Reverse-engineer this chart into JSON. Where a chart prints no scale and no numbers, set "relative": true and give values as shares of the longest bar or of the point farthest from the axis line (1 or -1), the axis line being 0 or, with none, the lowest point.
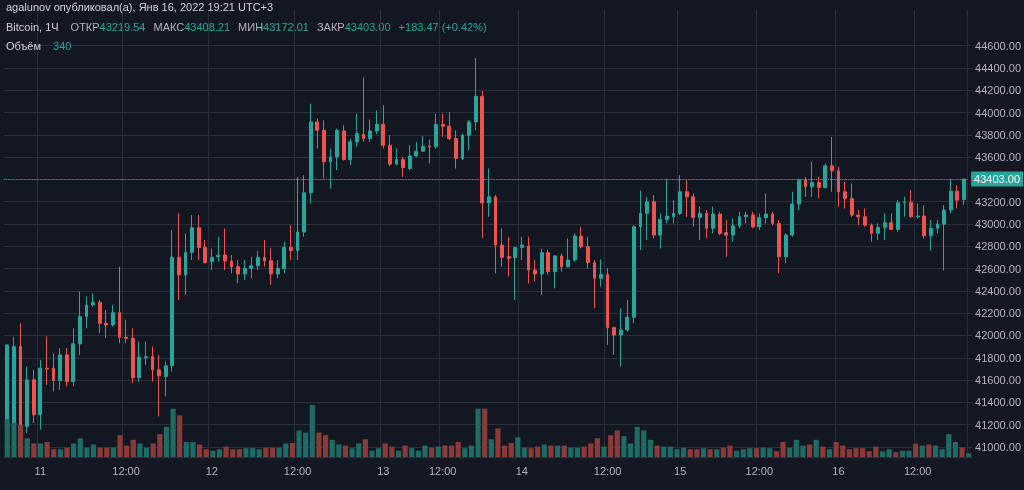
{
  "chart_data": [
    {
      "type": "candlestick",
      "title": "Bitcoin, 1Ч",
      "annotations": [
        "agalunov опубликовал(а), Янв 16, 2022 19:21 UTC+3",
        "ОТКР43219.54",
        "МАКС43408.21",
        "МИН43172.01",
        "ЗАКР43403.00",
        "+183.47 (+0.42%)"
      ],
      "categories": [
        null,
        null,
        null,
        null,
        null,
        "11",
        null,
        null,
        null,
        null,
        null,
        null,
        null,
        null,
        null,
        null,
        null,
        null,
        "12:00",
        null,
        null,
        null,
        null,
        null,
        null,
        null,
        null,
        null,
        null,
        null,
        null,
        "12",
        null,
        null,
        null,
        null,
        null,
        null,
        null,
        null,
        null,
        null,
        null,
        null,
        "12:00",
        null,
        null,
        null,
        null,
        null,
        null,
        null,
        null,
        null,
        null,
        null,
        null,
        "13",
        null,
        null,
        null,
        null,
        null,
        null,
        null,
        null,
        "12:00",
        null,
        null,
        null,
        null,
        null,
        null,
        null,
        null,
        null,
        null,
        null,
        "14",
        null,
        null,
        null,
        null,
        null,
        null,
        null,
        null,
        null,
        null,
        null,
        null,
        "12:00",
        null,
        null,
        null,
        null,
        null,
        null,
        null,
        null,
        null,
        null,
        "15",
        null,
        null,
        null,
        null,
        null,
        null,
        null,
        null,
        null,
        null,
        null,
        "12:00",
        null,
        null,
        null,
        null,
        null,
        null,
        null,
        null,
        null,
        null,
        null,
        "16",
        null,
        null,
        null,
        null,
        null,
        null,
        null,
        null,
        null,
        null,
        null,
        "12:00",
        null,
        null,
        null,
        null,
        null,
        null,
        null
      ],
      "ohlc": [
        [
          40946,
          41916,
          40946,
          41916
        ],
        [
          40976,
          41990,
          40931,
          41901
        ],
        [
          41901,
          42110,
          41170,
          41185
        ],
        [
          41185,
          41722,
          41125,
          41602
        ],
        [
          41602,
          41692,
          41214,
          41289
        ],
        [
          41289,
          41781,
          41155,
          41707
        ],
        [
          41707,
          41990,
          41558,
          41700
        ],
        [
          41707,
          41841,
          41498,
          41596
        ],
        [
          41596,
          41886,
          41513,
          41826
        ],
        [
          41826,
          41886,
          41543,
          41587
        ],
        [
          41587,
          42065,
          41543,
          41925
        ],
        [
          41925,
          42393,
          41826,
          42170
        ],
        [
          42170,
          42349,
          42065,
          42274
        ],
        [
          42274,
          42378,
          42259,
          42298
        ],
        [
          42298,
          42319,
          42020,
          42110
        ],
        [
          42110,
          42229,
          41976,
          42095
        ],
        [
          42095,
          42274,
          42080,
          42205
        ],
        [
          42205,
          42617,
          41931,
          41985
        ],
        [
          41985,
          42140,
          41931,
          41975
        ],
        [
          41975,
          42065,
          41573,
          41623
        ],
        [
          41623,
          41946,
          41587,
          41805
        ],
        [
          41800,
          41946,
          41737,
          41810
        ],
        [
          41810,
          41901,
          41587,
          41692
        ],
        [
          41692,
          41826,
          41274,
          41638
        ],
        [
          41632,
          41767,
          41453,
          41728
        ],
        [
          41728,
          42946,
          41677,
          42701
        ],
        [
          42701,
          43095,
          42319,
          42543
        ],
        [
          42543,
          42916,
          42364,
          42746
        ],
        [
          42746,
          43080,
          42677,
          42967
        ],
        [
          42967,
          43080,
          42677,
          42790
        ],
        [
          42790,
          42856,
          42647,
          42653
        ],
        [
          42662,
          42781,
          42587,
          42701
        ],
        [
          42707,
          42886,
          42662,
          42719
        ],
        [
          42722,
          42961,
          42587,
          42668
        ],
        [
          42668,
          42722,
          42558,
          42617
        ],
        [
          42617,
          42677,
          42468,
          42552
        ],
        [
          42552,
          42677,
          42498,
          42602
        ],
        [
          42602,
          42707,
          42513,
          42626
        ],
        [
          42626,
          42761,
          42587,
          42701
        ],
        [
          42701,
          42856,
          42617,
          42671
        ],
        [
          42671,
          42781,
          42453,
          42552
        ],
        [
          42552,
          42677,
          42513,
          42602
        ],
        [
          42602,
          42841,
          42558,
          42790
        ],
        [
          42790,
          42990,
          42677,
          42761
        ],
        [
          42761,
          43423,
          42677,
          42928
        ],
        [
          42928,
          43438,
          42886,
          43280
        ],
        [
          43280,
          44080,
          43184,
          43916
        ],
        [
          43916,
          43946,
          43677,
          43841
        ],
        [
          43841,
          43931,
          43408,
          43558
        ],
        [
          43558,
          43677,
          43319,
          43602
        ],
        [
          43602,
          43856,
          43483,
          43841
        ],
        [
          43835,
          43886,
          43570,
          43578
        ],
        [
          43578,
          43767,
          43528,
          43737
        ],
        [
          43737,
          43990,
          43692,
          43811
        ],
        [
          43805,
          44319,
          43737,
          43767
        ],
        [
          43767,
          43937,
          43737,
          43835
        ],
        [
          43835,
          44020,
          43805,
          43895
        ],
        [
          43895,
          44065,
          43677,
          43707
        ],
        [
          43707,
          43796,
          43519,
          43537
        ],
        [
          43537,
          43677,
          43528,
          43578
        ],
        [
          43578,
          43602,
          43423,
          43507
        ],
        [
          43498,
          43707,
          43483,
          43611
        ],
        [
          43611,
          43737,
          43602,
          43653
        ],
        [
          43653,
          43787,
          43647,
          43698
        ],
        [
          43698,
          43758,
          43543,
          43692
        ],
        [
          43692,
          43990,
          43677,
          43892
        ],
        [
          43892,
          43990,
          43781,
          43877
        ],
        [
          43877,
          44005,
          43752,
          43767
        ],
        [
          43767,
          43841,
          43498,
          43587
        ],
        [
          43587,
          43811,
          43573,
          43796
        ],
        [
          43796,
          43931,
          43662,
          43916
        ],
        [
          43916,
          44490,
          43841,
          44146
        ],
        [
          44146,
          44193,
          42871,
          43190
        ],
        [
          43190,
          43498,
          43065,
          43244
        ],
        [
          43244,
          43259,
          42558,
          42811
        ],
        [
          42811,
          42961,
          42617,
          42701
        ],
        [
          42707,
          42886,
          42528,
          42692
        ],
        [
          42698,
          42796,
          42319,
          42790
        ],
        [
          42790,
          42886,
          42677,
          42811
        ],
        [
          42802,
          42886,
          42468,
          42587
        ],
        [
          42587,
          42677,
          42483,
          42552
        ],
        [
          42552,
          42781,
          42364,
          42743
        ],
        [
          42743,
          42767,
          42543,
          42573
        ],
        [
          42573,
          42722,
          42423,
          42713
        ],
        [
          42713,
          42737,
          42573,
          42617
        ],
        [
          42617,
          42871,
          42611,
          42677
        ],
        [
          42677,
          42916,
          42662,
          42892
        ],
        [
          42892,
          42976,
          42781,
          42796
        ],
        [
          42796,
          42886,
          42602,
          42653
        ],
        [
          42653,
          42677,
          42244,
          42513
        ],
        [
          42513,
          42683,
          42438,
          42549
        ],
        [
          42549,
          42602,
          41916,
          42071
        ],
        [
          42071,
          42080,
          41826,
          42005
        ],
        [
          42005,
          42244,
          41722,
          42050
        ],
        [
          42050,
          42319,
          42035,
          42164
        ],
        [
          42164,
          42990,
          42110,
          42976
        ],
        [
          42976,
          43300,
          42767,
          43095
        ],
        [
          43095,
          43244,
          42856,
          43199
        ],
        [
          43199,
          43259,
          42871,
          42901
        ],
        [
          42901,
          43095,
          42781,
          43041
        ],
        [
          43041,
          43408,
          43005,
          43071
        ],
        [
          43065,
          43214,
          43005,
          43095
        ],
        [
          43095,
          43438,
          43080,
          43289
        ],
        [
          43289,
          43393,
          43065,
          43244
        ],
        [
          43244,
          43274,
          42976,
          43059
        ],
        [
          43059,
          43155,
          42856,
          43095
        ],
        [
          43095,
          43125,
          42871,
          42961
        ],
        [
          42961,
          43155,
          42916,
          43089
        ],
        [
          43089,
          43110,
          42901,
          42916
        ],
        [
          42922,
          43035,
          42707,
          42901
        ],
        [
          42901,
          43050,
          42841,
          42984
        ],
        [
          42984,
          43110,
          42961,
          43065
        ],
        [
          43065,
          43110,
          43005,
          43080
        ],
        [
          43080,
          43110,
          42961,
          42976
        ],
        [
          42976,
          43095,
          42946,
          43056
        ],
        [
          43056,
          43274,
          43005,
          43089
        ],
        [
          43089,
          43110,
          42990,
          43005
        ],
        [
          43005,
          43035,
          42558,
          42707
        ],
        [
          42707,
          42916,
          42647,
          42901
        ],
        [
          42901,
          43289,
          42886,
          43179
        ],
        [
          43179,
          43408,
          43125,
          43393
        ],
        [
          43393,
          43423,
          43244,
          43334
        ],
        [
          43334,
          43558,
          43244,
          43372
        ],
        [
          43372,
          43423,
          43229,
          43328
        ],
        [
          43328,
          43543,
          43319,
          43522
        ],
        [
          43522,
          43781,
          43289,
          43477
        ],
        [
          43477,
          43513,
          43155,
          43289
        ],
        [
          43289,
          43378,
          43140,
          43229
        ],
        [
          43229,
          43363,
          43065,
          43080
        ],
        [
          43080,
          43125,
          42990,
          43065
        ],
        [
          43065,
          43140,
          42976,
          42990
        ],
        [
          42990,
          43005,
          42841,
          42916
        ],
        [
          42916,
          43005,
          42856,
          42970
        ],
        [
          42970,
          43095,
          42856,
          43011
        ],
        [
          43011,
          43095,
          42946,
          42952
        ],
        [
          42952,
          43214,
          42931,
          43190
        ],
        [
          43190,
          43244,
          43065,
          43196
        ],
        [
          43196,
          43304,
          43060,
          43065
        ],
        [
          43065,
          43184,
          43050,
          43071
        ],
        [
          43071,
          43169,
          42871,
          42895
        ],
        [
          42895,
          43035,
          42761,
          42961
        ],
        [
          42961,
          43035,
          42916,
          42999
        ],
        [
          42999,
          43169,
          42582,
          43125
        ],
        [
          43125,
          43408,
          43095,
          43295
        ],
        [
          43295,
          43348,
          43140,
          43214
        ],
        [
          43219.54,
          43408.21,
          43172.01,
          43403
        ]
      ],
      "colors": [
        "#26a69a",
        "#26a69a",
        "#ef5350",
        "#26a69a",
        "#ef5350",
        "#26a69a",
        "#ef5350",
        "#ef5350",
        "#26a69a",
        "#ef5350",
        "#26a69a",
        "#26a69a",
        "#26a69a",
        "#26a69a",
        "#ef5350",
        "#ef5350",
        "#26a69a",
        "#ef5350",
        "#ef5350",
        "#ef5350",
        "#26a69a",
        "#26a69a",
        "#ef5350",
        "#ef5350",
        "#26a69a",
        "#26a69a",
        "#ef5350",
        "#26a69a",
        "#26a69a",
        "#ef5350",
        "#ef5350",
        "#26a69a",
        "#26a69a",
        "#ef5350",
        "#ef5350",
        "#ef5350",
        "#26a69a",
        "#26a69a",
        "#26a69a",
        "#ef5350",
        "#ef5350",
        "#26a69a",
        "#26a69a",
        "#ef5350",
        "#26a69a",
        "#26a69a",
        "#26a69a",
        "#ef5350",
        "#ef5350",
        "#26a69a",
        "#26a69a",
        "#ef5350",
        "#26a69a",
        "#26a69a",
        "#ef5350",
        "#26a69a",
        "#26a69a",
        "#ef5350",
        "#ef5350",
        "#26a69a",
        "#ef5350",
        "#26a69a",
        "#26a69a",
        "#26a69a",
        "#ef5350",
        "#26a69a",
        "#ef5350",
        "#ef5350",
        "#ef5350",
        "#26a69a",
        "#26a69a",
        "#26a69a",
        "#ef5350",
        "#26a69a",
        "#ef5350",
        "#ef5350",
        "#ef5350",
        "#26a69a",
        "#26a69a",
        "#ef5350",
        "#ef5350",
        "#26a69a",
        "#ef5350",
        "#26a69a",
        "#ef5350",
        "#26a69a",
        "#26a69a",
        "#ef5350",
        "#ef5350",
        "#ef5350",
        "#26a69a",
        "#ef5350",
        "#ef5350",
        "#26a69a",
        "#26a69a",
        "#26a69a",
        "#26a69a",
        "#26a69a",
        "#ef5350",
        "#26a69a",
        "#26a69a",
        "#26a69a",
        "#26a69a",
        "#ef5350",
        "#ef5350",
        "#26a69a",
        "#ef5350",
        "#26a69a",
        "#ef5350",
        "#ef5350",
        "#26a69a",
        "#26a69a",
        "#26a69a",
        "#ef5350",
        "#26a69a",
        "#26a69a",
        "#ef5350",
        "#ef5350",
        "#26a69a",
        "#26a69a",
        "#26a69a",
        "#ef5350",
        "#26a69a",
        "#ef5350",
        "#26a69a",
        "#ef5350",
        "#ef5350",
        "#ef5350",
        "#ef5350",
        "#ef5350",
        "#ef5350",
        "#ef5350",
        "#26a69a",
        "#26a69a",
        "#ef5350",
        "#26a69a",
        "#26a69a",
        "#ef5350",
        "#26a69a",
        "#ef5350",
        "#26a69a",
        "#26a69a",
        "#26a69a",
        "#26a69a",
        "#ef5350",
        "#26a69a"
      ],
      "ylim": [
        40910,
        44920
      ],
      "yticks": [
        {
          "value": 41000,
          "label": "41000.00"
        },
        {
          "value": 41200,
          "label": "41200.00"
        },
        {
          "value": 41400,
          "label": "41400.00"
        },
        {
          "value": 41600,
          "label": "41600.00"
        },
        {
          "value": 41800,
          "label": "41800.00"
        },
        {
          "value": 42000,
          "label": "42000.00"
        },
        {
          "value": 42200,
          "label": "42200.00"
        },
        {
          "value": 42400,
          "label": "42400.00"
        },
        {
          "value": 42600,
          "label": "42600.00"
        },
        {
          "value": 42800,
          "label": "42800.00"
        },
        {
          "value": 43000,
          "label": "43000.00"
        },
        {
          "value": 43200,
          "label": "43200.00"
        },
        {
          "value": 43600,
          "label": "43600.00"
        },
        {
          "value": 43800,
          "label": "43800.00"
        },
        {
          "value": 44000,
          "label": "44000.00"
        },
        {
          "value": 44200,
          "label": "44200.00"
        },
        {
          "value": 44400,
          "label": "44400.00"
        },
        {
          "value": 44600,
          "label": "44600.00"
        }
      ],
      "ref_lines": [
        {
          "axis": "y",
          "value": 43403,
          "label": "43403.00",
          "color": "#26a69a",
          "line_style": "dotted"
        }
      ],
      "grid": true
    },
    {
      "type": "bar",
      "title": "Объём",
      "annotations": [
        "340"
      ],
      "relative": true,
      "categories": [
        null,
        null,
        null,
        null,
        null,
        null,
        null,
        null,
        null,
        null,
        null,
        null,
        null,
        null,
        null,
        null,
        null,
        null,
        null,
        null,
        null,
        null,
        null,
        null,
        null,
        null,
        null,
        null,
        null,
        null,
        null,
        null,
        null,
        null,
        null,
        null,
        null,
        null,
        null,
        null,
        null,
        null,
        null,
        null,
        null,
        null,
        null,
        null,
        null,
        null,
        null,
        null,
        null,
        null,
        null,
        null,
        null,
        null,
        null,
        null,
        null,
        null,
        null,
        null,
        null,
        null,
        null,
        null,
        null,
        null,
        null,
        null,
        null,
        null,
        null,
        null,
        null,
        null,
        null,
        null,
        null,
        null,
        null,
        null,
        null,
        null,
        null,
        null,
        null,
        null,
        null,
        null,
        null,
        null,
        null,
        null,
        null,
        null,
        null,
        null,
        null,
        null,
        null,
        null,
        null,
        null,
        null,
        null,
        null,
        null,
        null,
        null,
        null,
        null,
        null,
        null,
        null,
        null,
        null,
        null,
        null,
        null,
        null,
        null,
        null,
        null,
        null,
        null,
        null,
        null,
        null,
        null,
        null,
        null,
        null,
        null,
        null,
        null,
        null,
        null,
        null,
        null,
        null,
        null,
        null,
        null
      ],
      "values": [
        0.73,
        0.66,
        0.62,
        0.36,
        0.26,
        0.26,
        0.29,
        0.15,
        0.15,
        0.18,
        0.26,
        0.36,
        0.18,
        0.24,
        0.18,
        0.18,
        0.18,
        0.42,
        0.22,
        0.33,
        0.26,
        0.18,
        0.26,
        0.44,
        0.58,
        0.93,
        0.8,
        0.29,
        0.29,
        0.24,
        0.15,
        0.12,
        0.15,
        0.2,
        0.15,
        0.15,
        0.17,
        0.17,
        0.15,
        0.18,
        0.18,
        0.18,
        0.26,
        0.27,
        0.51,
        0.47,
        1,
        0.47,
        0.42,
        0.33,
        0.24,
        0.22,
        0.17,
        0.26,
        0.34,
        0.12,
        0.17,
        0.26,
        0.2,
        0.12,
        0.22,
        0.17,
        0.12,
        0.22,
        0.18,
        0.2,
        0.22,
        0.22,
        0.29,
        0.17,
        0.22,
        0.93,
        0.93,
        0.34,
        0.55,
        0.22,
        0.27,
        0.38,
        0.18,
        0.17,
        0.2,
        0.24,
        0.22,
        0.22,
        0.22,
        0.18,
        0.18,
        0.2,
        0.26,
        0.36,
        0.2,
        0.42,
        0.51,
        0.4,
        0.26,
        0.58,
        0.51,
        0.33,
        0.22,
        0.2,
        0.2,
        0.15,
        0.18,
        0.15,
        0.15,
        0.17,
        0.15,
        0.15,
        0.18,
        0.22,
        0.12,
        0.15,
        0.17,
        0.17,
        0.18,
        0.17,
        0.11,
        0.29,
        0.18,
        0.33,
        0.22,
        0.24,
        0.33,
        0.2,
        0.15,
        0.29,
        0.22,
        0.15,
        0.17,
        0.17,
        0.11,
        0.2,
        0.11,
        0.15,
        0.09,
        0.12,
        0.12,
        0.26,
        0.22,
        0.24,
        0.22,
        0.15,
        0.44,
        0.29,
        0.18,
        0.07
      ],
      "colors": [
        "#1d6b64",
        "#1d6b64",
        "#8b3a3a",
        "#1d6b64",
        "#8b3a3a",
        "#1d6b64",
        "#8b3a3a",
        "#8b3a3a",
        "#1d6b64",
        "#8b3a3a",
        "#1d6b64",
        "#1d6b64",
        "#1d6b64",
        "#1d6b64",
        "#8b3a3a",
        "#8b3a3a",
        "#1d6b64",
        "#8b3a3a",
        "#8b3a3a",
        "#8b3a3a",
        "#1d6b64",
        "#1d6b64",
        "#8b3a3a",
        "#8b3a3a",
        "#1d6b64",
        "#1d6b64",
        "#8b3a3a",
        "#1d6b64",
        "#1d6b64",
        "#8b3a3a",
        "#8b3a3a",
        "#1d6b64",
        "#1d6b64",
        "#8b3a3a",
        "#8b3a3a",
        "#8b3a3a",
        "#1d6b64",
        "#1d6b64",
        "#1d6b64",
        "#8b3a3a",
        "#8b3a3a",
        "#1d6b64",
        "#1d6b64",
        "#8b3a3a",
        "#1d6b64",
        "#1d6b64",
        "#1d6b64",
        "#8b3a3a",
        "#8b3a3a",
        "#1d6b64",
        "#1d6b64",
        "#8b3a3a",
        "#1d6b64",
        "#1d6b64",
        "#8b3a3a",
        "#1d6b64",
        "#1d6b64",
        "#8b3a3a",
        "#8b3a3a",
        "#1d6b64",
        "#8b3a3a",
        "#1d6b64",
        "#1d6b64",
        "#1d6b64",
        "#8b3a3a",
        "#1d6b64",
        "#8b3a3a",
        "#8b3a3a",
        "#8b3a3a",
        "#1d6b64",
        "#1d6b64",
        "#1d6b64",
        "#8b3a3a",
        "#1d6b64",
        "#8b3a3a",
        "#8b3a3a",
        "#8b3a3a",
        "#1d6b64",
        "#1d6b64",
        "#8b3a3a",
        "#8b3a3a",
        "#1d6b64",
        "#8b3a3a",
        "#1d6b64",
        "#8b3a3a",
        "#1d6b64",
        "#1d6b64",
        "#8b3a3a",
        "#8b3a3a",
        "#8b3a3a",
        "#1d6b64",
        "#8b3a3a",
        "#8b3a3a",
        "#1d6b64",
        "#1d6b64",
        "#1d6b64",
        "#1d6b64",
        "#1d6b64",
        "#8b3a3a",
        "#1d6b64",
        "#1d6b64",
        "#1d6b64",
        "#1d6b64",
        "#8b3a3a",
        "#8b3a3a",
        "#1d6b64",
        "#8b3a3a",
        "#1d6b64",
        "#8b3a3a",
        "#8b3a3a",
        "#1d6b64",
        "#1d6b64",
        "#1d6b64",
        "#8b3a3a",
        "#1d6b64",
        "#1d6b64",
        "#8b3a3a",
        "#8b3a3a",
        "#1d6b64",
        "#1d6b64",
        "#1d6b64",
        "#8b3a3a",
        "#1d6b64",
        "#8b3a3a",
        "#1d6b64",
        "#8b3a3a",
        "#8b3a3a",
        "#8b3a3a",
        "#8b3a3a",
        "#8b3a3a",
        "#8b3a3a",
        "#8b3a3a",
        "#1d6b64",
        "#1d6b64",
        "#8b3a3a",
        "#1d6b64",
        "#1d6b64",
        "#8b3a3a",
        "#1d6b64",
        "#8b3a3a",
        "#1d6b64",
        "#1d6b64",
        "#1d6b64",
        "#1d6b64",
        "#8b3a3a",
        "#1d6b64"
      ]
    }
  ]
}
